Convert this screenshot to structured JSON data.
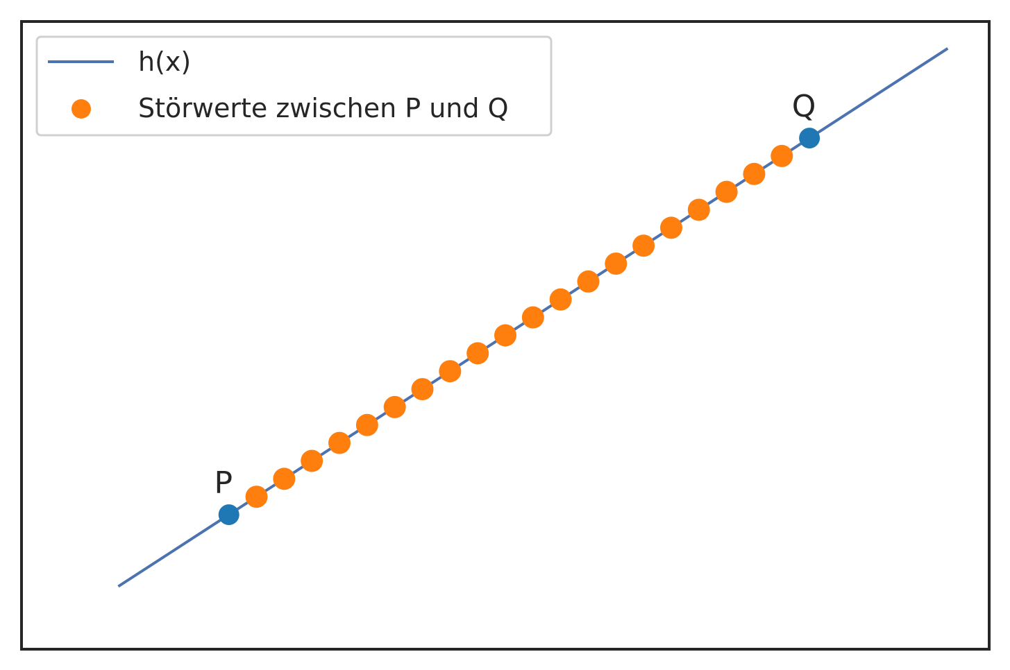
{
  "chart_data": {
    "type": "scatter",
    "title": "",
    "xlabel": "",
    "ylabel": "",
    "xlim": [
      -1.75,
      15.75
    ],
    "ylim": [
      -1.75,
      15.75
    ],
    "grid": false,
    "legend_placement": "top-left",
    "series": [
      {
        "name": "h(x)",
        "kind": "line",
        "color": "#4c72b0",
        "x": [
          0,
          15
        ],
        "y": [
          0,
          15
        ]
      },
      {
        "name": "Störwerte zwischen P und Q",
        "kind": "scatter",
        "color": "#ff7f0e",
        "x": [
          2.5,
          3.0,
          3.5,
          4.0,
          4.5,
          5.0,
          5.5,
          6.0,
          6.5,
          7.0,
          7.5,
          8.0,
          8.5,
          9.0,
          9.5,
          10.0,
          10.5,
          11.0,
          11.5,
          12.0
        ],
        "y": [
          2.5,
          3.0,
          3.5,
          4.0,
          4.5,
          5.0,
          5.5,
          6.0,
          6.5,
          7.0,
          7.5,
          8.0,
          8.5,
          9.0,
          9.5,
          10.0,
          10.5,
          11.0,
          11.5,
          12.0
        ]
      }
    ],
    "points": [
      {
        "label": "P",
        "x": 2.0,
        "y": 2.0,
        "color": "#1f77b4"
      },
      {
        "label": "Q",
        "x": 12.5,
        "y": 12.5,
        "color": "#1f77b4"
      }
    ]
  },
  "colors": {
    "frame": "#262626",
    "legend_border": "#d0d0d0"
  }
}
